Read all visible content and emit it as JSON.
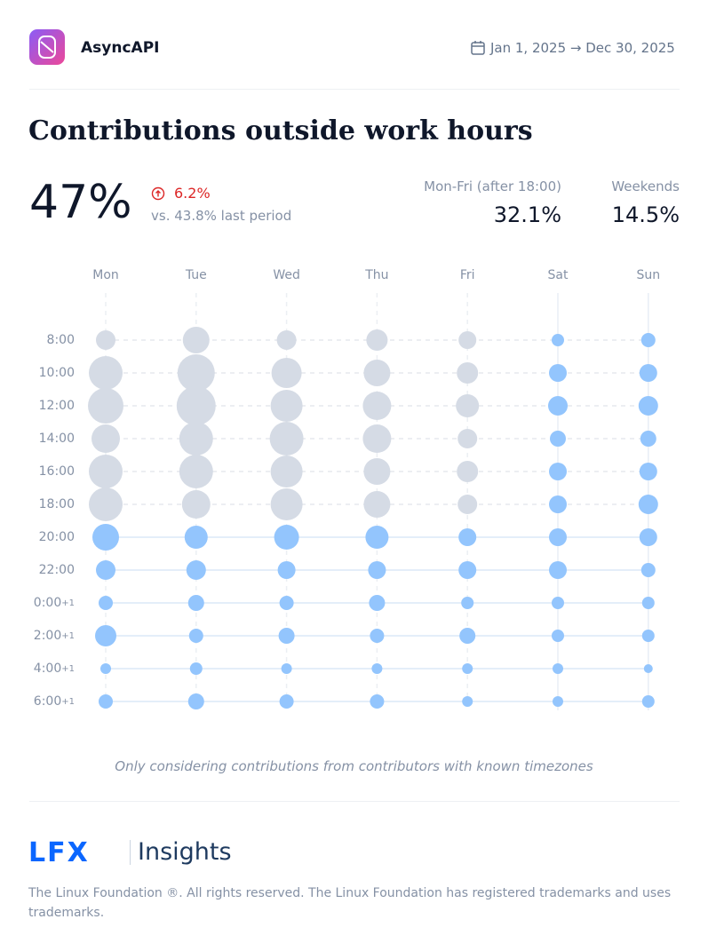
{
  "header": {
    "project": "AsyncAPI",
    "date_range": "Jan 1, 2025 → Dec 30, 2025"
  },
  "title": "Contributions outside work hours",
  "summary": {
    "total": "47%",
    "change": "6.2%",
    "comparison": "vs. 43.8% last period",
    "stats": [
      {
        "label": "Mon-Fri (after 18:00)",
        "value": "32.1%"
      },
      {
        "label": "Weekends",
        "value": "14.5%"
      }
    ]
  },
  "chart_data": {
    "type": "bubble",
    "x_categories": [
      "Mon",
      "Tue",
      "Wed",
      "Thu",
      "Fri",
      "Sat",
      "Sun"
    ],
    "y_categories": [
      {
        "text": "8:00"
      },
      {
        "text": "10:00"
      },
      {
        "text": "12:00"
      },
      {
        "text": "14:00"
      },
      {
        "text": "16:00"
      },
      {
        "text": "18:00"
      },
      {
        "text": "20:00"
      },
      {
        "text": "22:00"
      },
      {
        "text": "0:00",
        "suffix": "+1"
      },
      {
        "text": "2:00",
        "suffix": "+1"
      },
      {
        "text": "4:00",
        "suffix": "+1"
      },
      {
        "text": "6:00",
        "suffix": "+1"
      }
    ],
    "values": [
      [
        11,
        15,
        11,
        12,
        10,
        7,
        8
      ],
      [
        19,
        21,
        17,
        15,
        12,
        10,
        10
      ],
      [
        20,
        22,
        18,
        16,
        13,
        11,
        11
      ],
      [
        16,
        19,
        19,
        16,
        11,
        9,
        9
      ],
      [
        19,
        19,
        18,
        15,
        12,
        10,
        10
      ],
      [
        19,
        16,
        18,
        15,
        11,
        10,
        11
      ],
      [
        15,
        13,
        14,
        13,
        10,
        10,
        10
      ],
      [
        11,
        11,
        10,
        10,
        10,
        10,
        8
      ],
      [
        8,
        9,
        8,
        9,
        7,
        7,
        7
      ],
      [
        12,
        8,
        9,
        8,
        9,
        7,
        7
      ],
      [
        6,
        7,
        6,
        6,
        6,
        6,
        5
      ],
      [
        8,
        9,
        8,
        8,
        6,
        6,
        7
      ]
    ],
    "work_color": "#d5dbe5",
    "off_color": "#93c5fd",
    "note": "Only considering contributions from contributors with known timezones"
  },
  "footer": {
    "brand": "LFX",
    "product": "Insights",
    "copyright": "The Linux Foundation ®. All rights reserved. The Linux Foundation has registered trademarks and uses trademarks."
  }
}
